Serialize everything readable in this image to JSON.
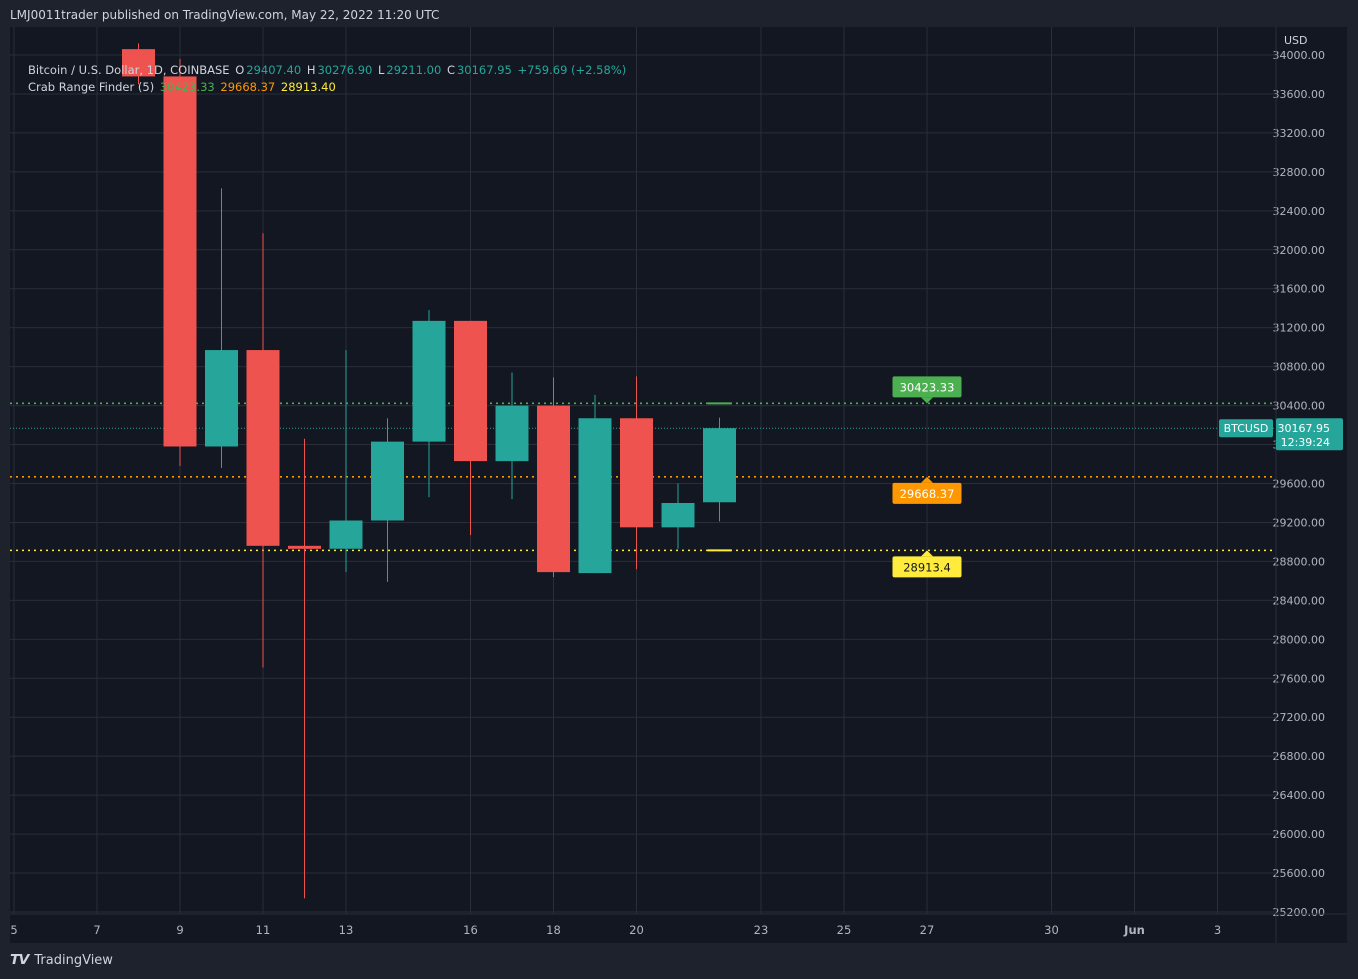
{
  "header": {
    "published_by": "LMJ0011trader published on TradingView.com, May 22, 2022 11:20 UTC"
  },
  "footer": {
    "brand": "TradingView",
    "logo_glyph": "𝙏𝙑"
  },
  "legend": {
    "symbol": "Bitcoin / U.S. Dollar, 1D, COINBASE",
    "o_label": "O",
    "o_value": "29407.40",
    "h_label": "H",
    "h_value": "30276.90",
    "l_label": "L",
    "l_value": "29211.00",
    "c_label": "C",
    "c_value": "30167.95",
    "change": "+759.69 (+2.58%)",
    "indicator": "Crab Range Finder (5)",
    "ind_v1": "30423.33",
    "ind_v2": "29668.37",
    "ind_v3": "28913.40"
  },
  "colors": {
    "up": "#26a69a",
    "down": "#ef5350",
    "upper": "#4caf50",
    "mid": "#ff9800",
    "lower": "#ffeb3b",
    "background": "#131722",
    "grid": "#2a2e39"
  },
  "chart_data": {
    "type": "candlestick",
    "currency": "USD",
    "ylim": [
      25200,
      34000
    ],
    "y_ticks": [
      "34000.00",
      "33600.00",
      "33200.00",
      "32800.00",
      "32400.00",
      "32000.00",
      "31600.00",
      "31200.00",
      "30800.00",
      "30400.00",
      "30000.00",
      "29600.00",
      "29200.00",
      "28800.00",
      "28400.00",
      "28000.00",
      "27600.00",
      "27200.00",
      "26800.00",
      "26400.00",
      "26000.00",
      "25600.00",
      "25200.00"
    ],
    "x_ticks": [
      {
        "label": "5",
        "day": 5
      },
      {
        "label": "7",
        "day": 7
      },
      {
        "label": "9",
        "day": 9
      },
      {
        "label": "11",
        "day": 11
      },
      {
        "label": "13",
        "day": 13
      },
      {
        "label": "16",
        "day": 16
      },
      {
        "label": "18",
        "day": 18
      },
      {
        "label": "20",
        "day": 20
      },
      {
        "label": "23",
        "day": 23
      },
      {
        "label": "25",
        "day": 25
      },
      {
        "label": "27",
        "day": 27
      },
      {
        "label": "30",
        "day": 30
      },
      {
        "label": "Jun",
        "day": 32,
        "bold": true
      },
      {
        "label": "3",
        "day": 34
      }
    ],
    "candles": [
      {
        "day": 8,
        "open": 34060,
        "high": 34120,
        "low": 33700,
        "close": 33780
      },
      {
        "day": 9,
        "open": 33780,
        "high": 33960,
        "low": 29780,
        "close": 29980
      },
      {
        "day": 10,
        "open": 29980,
        "high": 32630,
        "low": 29760,
        "close": 30970
      },
      {
        "day": 11,
        "open": 30970,
        "high": 32170,
        "low": 27710,
        "close": 28960
      },
      {
        "day": 12,
        "open": 28960,
        "high": 30060,
        "low": 25340,
        "close": 28930
      },
      {
        "day": 13,
        "open": 28930,
        "high": 30970,
        "low": 28690,
        "close": 29220
      },
      {
        "day": 14,
        "open": 29220,
        "high": 30270,
        "low": 28590,
        "close": 30030
      },
      {
        "day": 15,
        "open": 30030,
        "high": 31380,
        "low": 29460,
        "close": 31270
      },
      {
        "day": 16,
        "open": 31270,
        "high": 31270,
        "low": 29070,
        "close": 29830
      },
      {
        "day": 17,
        "open": 29830,
        "high": 30740,
        "low": 29440,
        "close": 30400
      },
      {
        "day": 18,
        "open": 30400,
        "high": 30690,
        "low": 28640,
        "close": 28690
      },
      {
        "day": 19,
        "open": 28680,
        "high": 30510,
        "low": 28680,
        "close": 30270
      },
      {
        "day": 20,
        "open": 30270,
        "high": 30700,
        "low": 28720,
        "close": 29150
      },
      {
        "day": 21,
        "open": 29150,
        "high": 29600,
        "low": 28930,
        "close": 29400
      },
      {
        "day": 22,
        "open": 29407.4,
        "high": 30276.9,
        "low": 29211.0,
        "close": 30167.95
      }
    ],
    "indicator": {
      "name": "Crab Range Finder (5)",
      "upper": 30423.33,
      "mid": 29668.37,
      "lower": 28913.4
    },
    "level_labels": {
      "upper": "30423.33",
      "mid": "29668.37",
      "lower": "28913.4"
    },
    "price_tag": {
      "symbol": "BTCUSD",
      "price": "30167.95",
      "countdown": "12:39:24"
    }
  }
}
